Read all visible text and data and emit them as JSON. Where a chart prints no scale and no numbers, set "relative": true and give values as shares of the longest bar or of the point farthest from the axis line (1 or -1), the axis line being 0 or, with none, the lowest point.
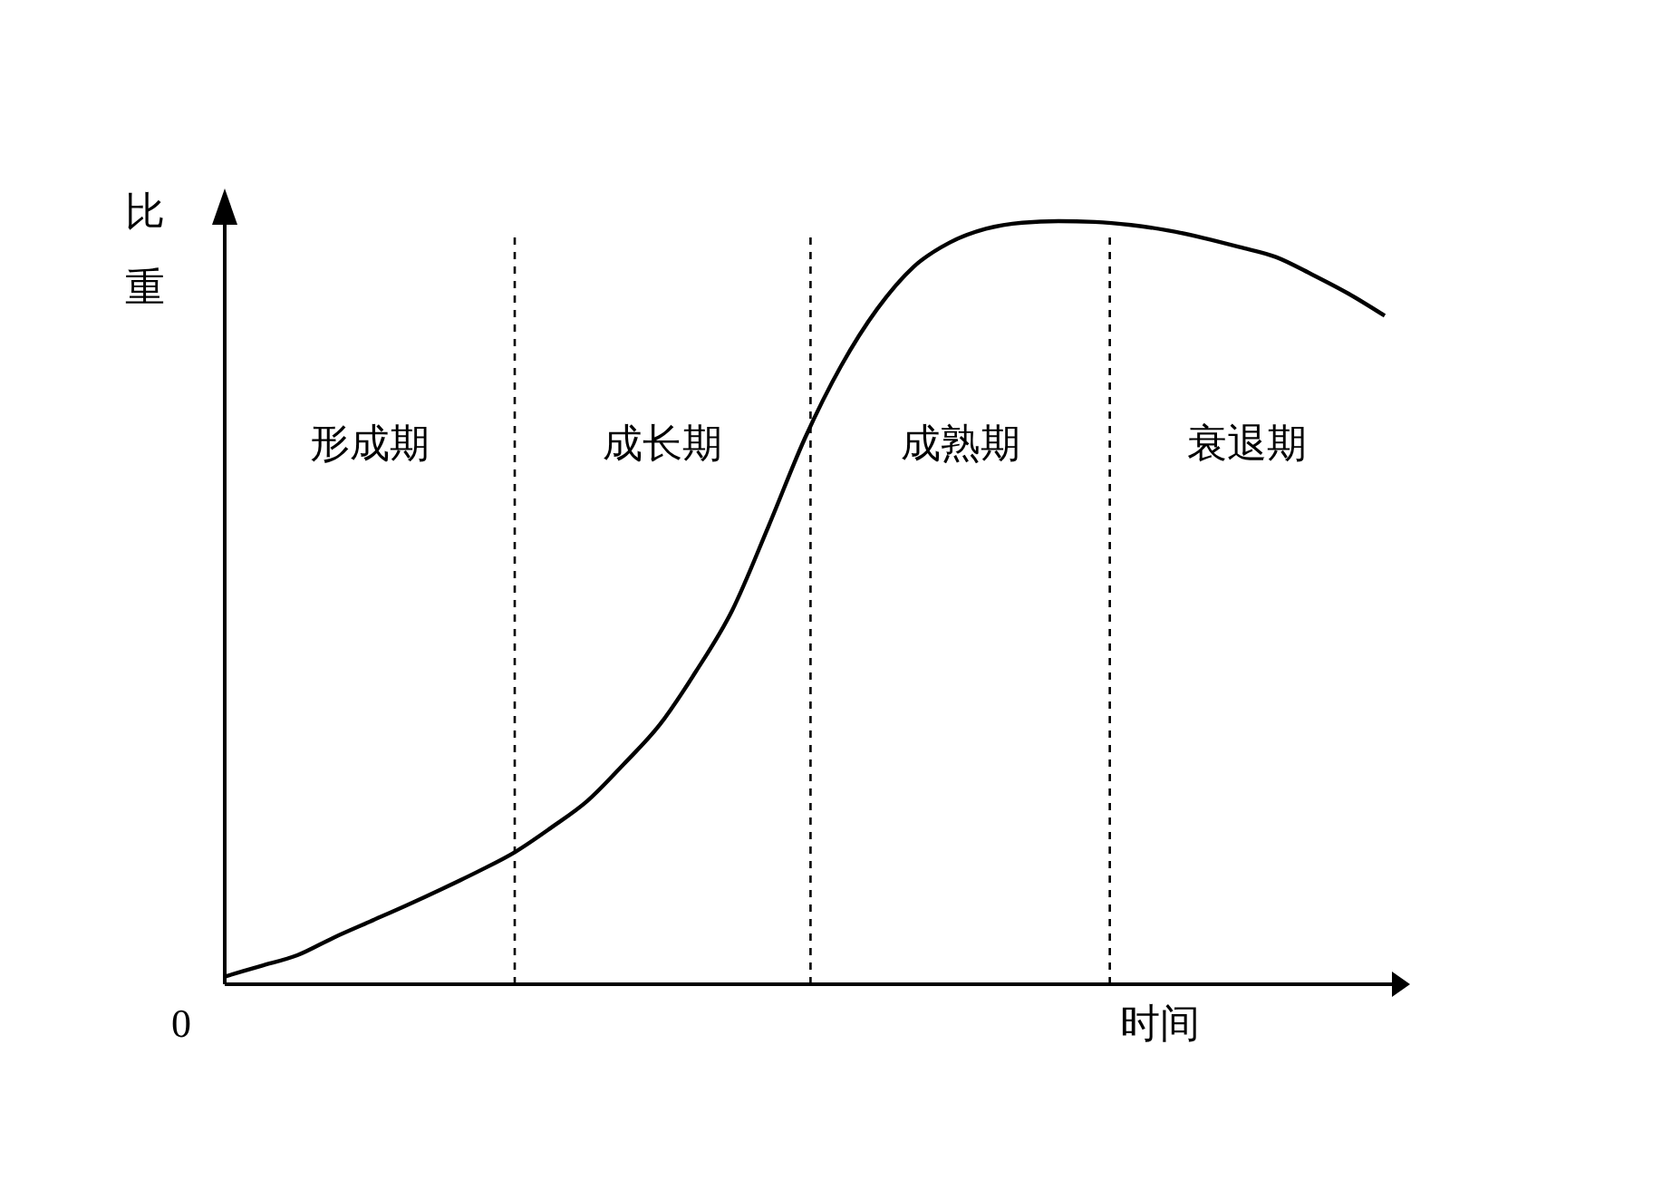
{
  "chart_data": {
    "type": "line",
    "relative": true,
    "ylabel": "比重",
    "xlabel": "时间",
    "annotations": [
      "0",
      "形成期",
      "成长期",
      "成熟期",
      "衰退期"
    ],
    "categories": [
      null,
      null,
      null,
      null,
      null,
      null,
      null,
      null,
      null,
      null,
      null,
      null,
      null,
      null,
      null,
      null,
      null,
      null,
      null,
      null,
      null,
      null,
      null,
      null,
      null,
      null,
      null,
      null,
      null,
      null,
      null,
      null,
      null
    ],
    "series": [
      {
        "color": "#000000",
        "values": [
          0.01,
          0.024,
          0.038,
          0.061,
          0.082,
          0.103,
          0.125,
          0.148,
          0.173,
          0.205,
          0.24,
          0.288,
          0.34,
          0.41,
          0.49,
          0.6,
          0.715,
          0.81,
          0.885,
          0.94,
          0.972,
          0.99,
          0.998,
          1,
          0.999,
          0.995,
          0.988,
          0.978,
          0.966,
          0.953,
          0.93,
          0.905,
          0.876
        ]
      }
    ]
  }
}
